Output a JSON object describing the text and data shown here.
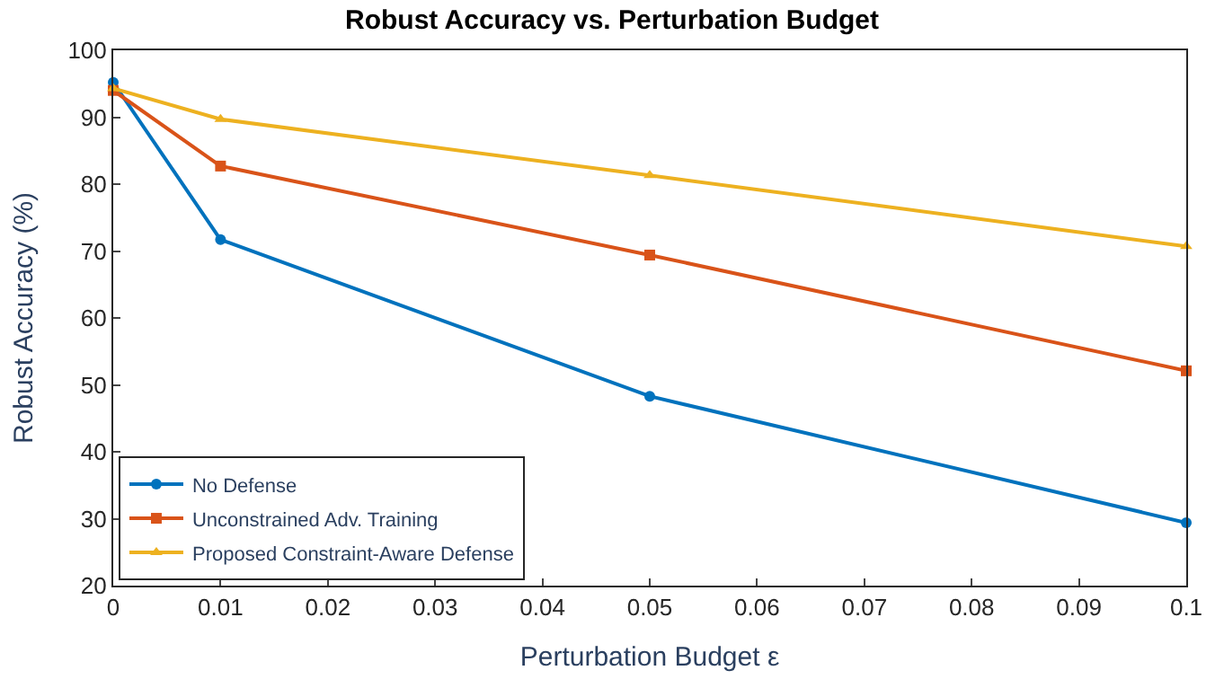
{
  "chart_data": {
    "type": "line",
    "title": "Robust Accuracy vs. Perturbation Budget",
    "xlabel": "Perturbation Budget ε",
    "ylabel": "Robust Accuracy (%)",
    "x": [
      0,
      0.01,
      0.05,
      0.1
    ],
    "series": [
      {
        "name": "No Defense",
        "color": "#0072bd",
        "values": [
          95.2,
          71.7,
          48.3,
          29.4
        ],
        "marker": "circle"
      },
      {
        "name": "Unconstrained Adv. Training",
        "color": "#d95319",
        "values": [
          94.0,
          82.7,
          69.4,
          52.1
        ],
        "marker": "square"
      },
      {
        "name": "Proposed Constraint-Aware Defense",
        "color": "#edb120",
        "values": [
          94.3,
          89.7,
          81.3,
          70.7
        ],
        "marker": "triangle"
      }
    ],
    "xlim": [
      0,
      0.1
    ],
    "xticks": [
      0,
      0.01,
      0.02,
      0.03,
      0.04,
      0.05,
      0.06,
      0.07,
      0.08,
      0.09,
      0.1
    ],
    "ylim": [
      20,
      100
    ],
    "yticks": [
      20,
      30,
      40,
      50,
      60,
      70,
      80,
      90,
      100
    ],
    "legend": "bottom left",
    "line_style": "solid"
  }
}
